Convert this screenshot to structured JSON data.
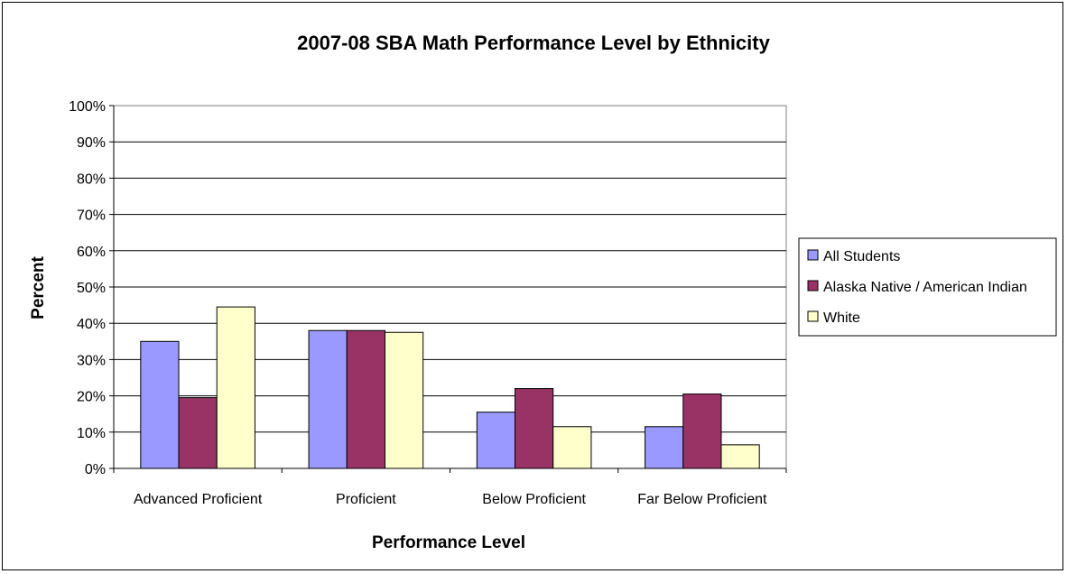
{
  "chart_data": {
    "type": "bar",
    "title": "2007-08 SBA Math Performance Level by Ethnicity",
    "xlabel": "Performance Level",
    "ylabel": "Percent",
    "categories": [
      "Advanced Proficient",
      "Proficient",
      "Below Proficient",
      "Far Below Proficient"
    ],
    "series": [
      {
        "name": "All Students",
        "color": "#9999ff",
        "values": [
          35,
          38,
          15.5,
          11.5
        ]
      },
      {
        "name": "Alaska Native / American Indian",
        "color": "#993366",
        "values": [
          19.5,
          38,
          22,
          20.5
        ]
      },
      {
        "name": "White",
        "color": "#ffffcc",
        "values": [
          44.5,
          37.5,
          11.5,
          6.5
        ]
      }
    ],
    "ylim": [
      0,
      100
    ],
    "yticks": [
      "0%",
      "10%",
      "20%",
      "30%",
      "40%",
      "50%",
      "60%",
      "70%",
      "80%",
      "90%",
      "100%"
    ],
    "grid": true,
    "legend_position": "right"
  }
}
